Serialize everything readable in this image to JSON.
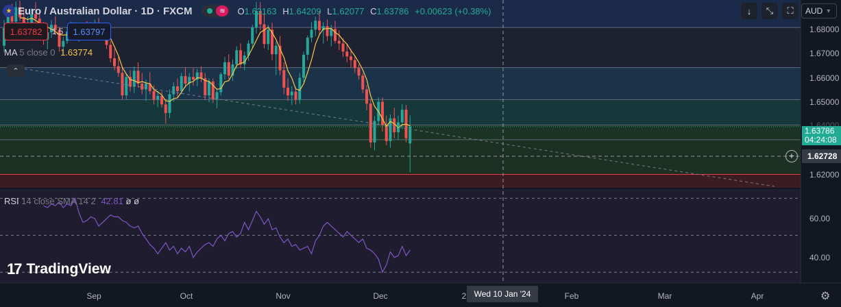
{
  "header": {
    "symbol_title": "Euro / Australian Dollar · 1D · FXCM",
    "ohlc": [
      {
        "key": "O",
        "value": "1.63163"
      },
      {
        "key": "H",
        "value": "1.64209"
      },
      {
        "key": "L",
        "value": "1.62077"
      },
      {
        "key": "C",
        "value": "1.63786"
      }
    ],
    "change": "+0.00623 (+0.38%)"
  },
  "trade": {
    "sell_price": "1.63782",
    "spread": "1.5",
    "buy_price": "1.63797"
  },
  "indicators": {
    "ma_label": "MA",
    "ma_params": "5 close 0",
    "ma_value": "1.63774",
    "rsi_label": "RSI",
    "rsi_params": "14 close SMA 14 2",
    "rsi_value": "42.81",
    "rsi_extra1": "ø",
    "rsi_extra2": "ø"
  },
  "toolbar": {
    "currency": "AUD",
    "collapse_icon": "chevron-up-icon",
    "buttons": [
      "download-arrow-icon",
      "fullscreen-icon",
      "screenshot-icon"
    ]
  },
  "price_axis": {
    "labels": [
      "1.68000",
      "1.67000",
      "1.66000",
      "1.65000",
      "1.62000"
    ],
    "current_price": "1.63786",
    "countdown": "04:24:08",
    "crosshair_price": "1.62728",
    "partial_label": "1.64000"
  },
  "rsi_axis": {
    "labels": [
      "60.00",
      "40.00"
    ]
  },
  "time_axis": {
    "labels": [
      "Sep",
      "Oct",
      "Nov",
      "Dec",
      "2",
      "Feb",
      "Mar",
      "Apr"
    ],
    "crosshair_date": "Wed 10 Jan '24"
  },
  "brand": {
    "logo_mark": "17",
    "name": "TradingView"
  },
  "colors": {
    "bg": "#131722",
    "up": "#26a69a",
    "down": "#ef5350",
    "ma": "#f7c948",
    "rsi": "#7e57c2",
    "accent_green": "#22ab94"
  },
  "chart_data": [
    {
      "type": "candlestick",
      "title": "Euro / Australian Dollar · 1D · FXCM",
      "y_range": [
        1.615,
        1.6853
      ],
      "x_labels": [
        "Sep",
        "Oct",
        "Nov",
        "Dec",
        "Feb",
        "Mar",
        "Apr"
      ],
      "candles": [
        [
          1.6682,
          1.6778,
          1.6658,
          1.6748
        ],
        [
          1.6748,
          1.6826,
          1.6722,
          1.6795
        ],
        [
          1.6795,
          1.6838,
          1.6752,
          1.6772
        ],
        [
          1.6772,
          1.6847,
          1.676,
          1.6826
        ],
        [
          1.6826,
          1.685,
          1.6775,
          1.6788
        ],
        [
          1.6788,
          1.682,
          1.6732,
          1.675
        ],
        [
          1.675,
          1.679,
          1.671,
          1.6762
        ],
        [
          1.6762,
          1.6822,
          1.6748,
          1.68
        ],
        [
          1.68,
          1.6846,
          1.677,
          1.6783
        ],
        [
          1.6783,
          1.6808,
          1.6718,
          1.6738
        ],
        [
          1.6738,
          1.677,
          1.6686,
          1.6705
        ],
        [
          1.6705,
          1.675,
          1.6668,
          1.6732
        ],
        [
          1.6732,
          1.6778,
          1.6712,
          1.676
        ],
        [
          1.676,
          1.6792,
          1.6722,
          1.674
        ],
        [
          1.674,
          1.6752,
          1.666,
          1.6678
        ],
        [
          1.6678,
          1.6716,
          1.6648,
          1.67
        ],
        [
          1.67,
          1.6752,
          1.6688,
          1.6735
        ],
        [
          1.6735,
          1.6772,
          1.671,
          1.6744
        ],
        [
          1.6744,
          1.676,
          1.6705,
          1.6722
        ],
        [
          1.6722,
          1.6748,
          1.6698,
          1.6738
        ],
        [
          1.6738,
          1.6765,
          1.672,
          1.6755
        ],
        [
          1.6755,
          1.6774,
          1.6736,
          1.6744
        ],
        [
          1.6744,
          1.677,
          1.672,
          1.6752
        ],
        [
          1.6752,
          1.678,
          1.6728,
          1.6762
        ],
        [
          1.6762,
          1.6786,
          1.6736,
          1.6748
        ],
        [
          1.6748,
          1.6766,
          1.6705,
          1.6718
        ],
        [
          1.6718,
          1.673,
          1.667,
          1.6685
        ],
        [
          1.6685,
          1.67,
          1.662,
          1.6635
        ],
        [
          1.6635,
          1.667,
          1.659,
          1.6605
        ],
        [
          1.6605,
          1.664,
          1.6565,
          1.658
        ],
        [
          1.658,
          1.6598,
          1.648,
          1.6496
        ],
        [
          1.6496,
          1.6578,
          1.6482,
          1.6565
        ],
        [
          1.6565,
          1.659,
          1.651,
          1.6528
        ],
        [
          1.6528,
          1.6604,
          1.6505,
          1.6588
        ],
        [
          1.6588,
          1.662,
          1.6525,
          1.654
        ],
        [
          1.654,
          1.658,
          1.65,
          1.6518
        ],
        [
          1.6518,
          1.6555,
          1.6475,
          1.654
        ],
        [
          1.654,
          1.6582,
          1.65,
          1.6512
        ],
        [
          1.6512,
          1.6534,
          1.6462,
          1.648
        ],
        [
          1.648,
          1.6512,
          1.6452,
          1.6494
        ],
        [
          1.6494,
          1.651,
          1.645,
          1.6462
        ],
        [
          1.6462,
          1.6482,
          1.639,
          1.643
        ],
        [
          1.643,
          1.6518,
          1.641,
          1.65
        ],
        [
          1.65,
          1.6545,
          1.6472,
          1.653
        ],
        [
          1.653,
          1.656,
          1.649,
          1.6512
        ],
        [
          1.6512,
          1.658,
          1.65,
          1.6568
        ],
        [
          1.6568,
          1.6602,
          1.6525,
          1.654
        ],
        [
          1.654,
          1.658,
          1.651,
          1.6565
        ],
        [
          1.6565,
          1.6598,
          1.6532,
          1.6555
        ],
        [
          1.6555,
          1.6595,
          1.653,
          1.6582
        ],
        [
          1.6582,
          1.6604,
          1.6545,
          1.656
        ],
        [
          1.656,
          1.658,
          1.6478,
          1.6496
        ],
        [
          1.6496,
          1.656,
          1.647,
          1.6548
        ],
        [
          1.6548,
          1.656,
          1.6468,
          1.6482
        ],
        [
          1.6482,
          1.652,
          1.6448,
          1.6508
        ],
        [
          1.6508,
          1.6582,
          1.6495,
          1.6575
        ],
        [
          1.6575,
          1.664,
          1.6555,
          1.662
        ],
        [
          1.662,
          1.665,
          1.6555,
          1.657
        ],
        [
          1.657,
          1.663,
          1.655,
          1.6612
        ],
        [
          1.6612,
          1.668,
          1.6595,
          1.6665
        ],
        [
          1.6665,
          1.669,
          1.6598,
          1.6612
        ],
        [
          1.6612,
          1.666,
          1.659,
          1.6645
        ],
        [
          1.6645,
          1.6702,
          1.6625,
          1.669
        ],
        [
          1.669,
          1.676,
          1.6672,
          1.675
        ],
        [
          1.675,
          1.6846,
          1.6728,
          1.6812
        ],
        [
          1.6812,
          1.6846,
          1.674,
          1.6762
        ],
        [
          1.6762,
          1.68,
          1.6672,
          1.6688
        ],
        [
          1.6688,
          1.676,
          1.6666,
          1.6742
        ],
        [
          1.6742,
          1.6768,
          1.6628,
          1.665
        ],
        [
          1.665,
          1.6698,
          1.6572,
          1.6682
        ],
        [
          1.6682,
          1.6718,
          1.6572,
          1.659
        ],
        [
          1.659,
          1.662,
          1.65,
          1.6525
        ],
        [
          1.6525,
          1.656,
          1.6475,
          1.6496
        ],
        [
          1.6496,
          1.653,
          1.646,
          1.651
        ],
        [
          1.651,
          1.6525,
          1.6462,
          1.648
        ],
        [
          1.648,
          1.658,
          1.6465,
          1.6562
        ],
        [
          1.6562,
          1.666,
          1.6545,
          1.6648
        ],
        [
          1.6648,
          1.672,
          1.6628,
          1.6712
        ],
        [
          1.6712,
          1.677,
          1.6695,
          1.6742
        ],
        [
          1.6742,
          1.679,
          1.6718,
          1.6775
        ],
        [
          1.6775,
          1.6812,
          1.6725,
          1.674
        ],
        [
          1.674,
          1.677,
          1.669,
          1.6755
        ],
        [
          1.6755,
          1.678,
          1.67,
          1.6718
        ],
        [
          1.6718,
          1.676,
          1.668,
          1.6745
        ],
        [
          1.6745,
          1.6775,
          1.669,
          1.67
        ],
        [
          1.67,
          1.674,
          1.6665,
          1.669
        ],
        [
          1.669,
          1.671,
          1.664,
          1.666
        ],
        [
          1.666,
          1.6688,
          1.662,
          1.6642
        ],
        [
          1.6642,
          1.667,
          1.66,
          1.6628
        ],
        [
          1.6628,
          1.6645,
          1.658,
          1.6598
        ],
        [
          1.6598,
          1.6612,
          1.6555,
          1.657
        ],
        [
          1.657,
          1.658,
          1.6505,
          1.6518
        ],
        [
          1.6518,
          1.6535,
          1.644,
          1.6465
        ],
        [
          1.6465,
          1.6482,
          1.63,
          1.632
        ],
        [
          1.632,
          1.6418,
          1.629,
          1.64
        ],
        [
          1.64,
          1.6488,
          1.6388,
          1.6472
        ],
        [
          1.6472,
          1.6488,
          1.636,
          1.6385
        ],
        [
          1.6385,
          1.642,
          1.631,
          1.6325
        ],
        [
          1.6325,
          1.6425,
          1.63,
          1.641
        ],
        [
          1.641,
          1.645,
          1.6335,
          1.6358
        ],
        [
          1.6358,
          1.642,
          1.633,
          1.6395
        ],
        [
          1.6395,
          1.6462,
          1.637,
          1.6442
        ],
        [
          1.6442,
          1.646,
          1.632,
          1.6335
        ],
        [
          1.6316,
          1.6421,
          1.6208,
          1.6379
        ]
      ],
      "ma": {
        "name": "MA 5 close 0",
        "last_value": 1.63774
      }
    },
    {
      "type": "line",
      "title": "RSI 14 close SMA 14 2",
      "y_range": [
        26,
        73.5
      ],
      "y_ticks": [
        60,
        40
      ],
      "levels": [
        70,
        50,
        30
      ],
      "values": [
        66,
        65,
        67,
        66,
        68,
        65,
        67,
        66,
        70,
        62,
        57,
        58,
        60,
        59,
        55,
        57,
        59,
        61,
        60,
        60,
        58,
        57,
        55,
        54,
        55,
        51,
        48,
        45,
        43,
        40,
        43,
        46,
        42,
        44,
        40,
        43,
        41,
        44,
        38,
        41,
        43,
        45,
        46,
        44,
        48,
        50,
        47,
        51,
        52,
        49,
        51,
        57,
        53,
        58,
        63,
        60,
        56,
        59,
        53,
        54,
        49,
        46,
        48,
        44,
        45,
        42,
        43,
        44,
        40,
        47,
        50,
        55,
        57,
        55,
        53,
        51,
        49,
        52,
        50,
        48,
        46,
        48,
        43,
        42,
        40,
        37,
        30,
        34,
        41,
        38,
        39,
        44,
        39,
        42
      ],
      "last_value": 42.81
    }
  ]
}
